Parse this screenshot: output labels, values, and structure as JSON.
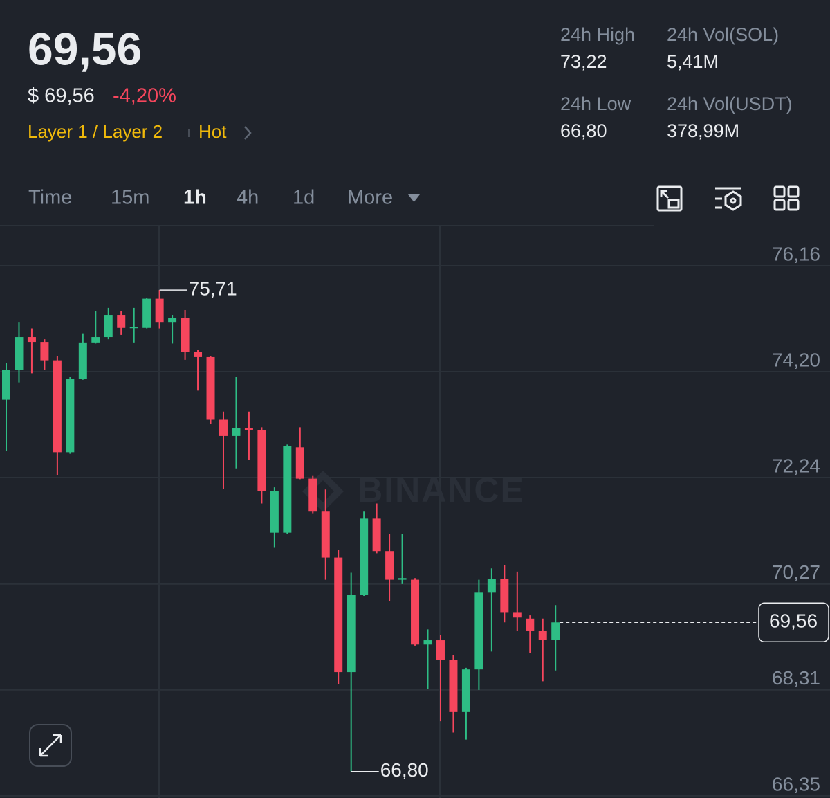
{
  "header": {
    "price": "69,56",
    "usd_price": "$ 69,56",
    "change": "-4,20%",
    "sector": "Layer 1 / Layer 2",
    "tag": "Hot"
  },
  "stats": [
    {
      "label": "24h High",
      "value": "73,22"
    },
    {
      "label": "24h Vol(SOL)",
      "value": "5,41M"
    },
    {
      "label": "24h Low",
      "value": "66,80"
    },
    {
      "label": "24h Vol(USDT)",
      "value": "378,99M"
    }
  ],
  "tabs": {
    "items": [
      "Time",
      "15m",
      "1h",
      "4h",
      "1d",
      "More"
    ],
    "active": "1h"
  },
  "chart_data": {
    "type": "candlestick",
    "watermark": "BINANCE",
    "up_color": "#2ebd85",
    "down_color": "#f6465d",
    "ylim": [
      66.31,
      76.89
    ],
    "yticks": [
      {
        "value": 76.16,
        "label": "76,16"
      },
      {
        "value": 74.2,
        "label": "74,20"
      },
      {
        "value": 72.24,
        "label": "72,24"
      },
      {
        "value": 70.27,
        "label": "70,27"
      },
      {
        "value": 68.31,
        "label": "68,31"
      },
      {
        "value": 66.35,
        "label": "66,35"
      }
    ],
    "grid": true,
    "open": [
      73.68,
      74.23,
      74.84,
      74.75,
      74.41,
      72.71,
      74.06,
      74.74,
      74.84,
      75.25,
      75.01,
      75.01,
      75.55,
      75.12,
      75.19,
      74.57,
      74.47,
      73.31,
      73.01,
      73.16,
      73.12,
      71.22,
      71.22,
      72.8,
      72.22,
      71.61,
      70.76,
      68.64,
      70.07,
      71.48,
      70.88,
      70.35,
      70.35,
      69.15,
      69.23,
      68.86,
      67.9,
      68.69,
      70.11,
      70.37,
      69.75,
      69.63,
      69.41,
      69.24
    ],
    "high": [
      74.36,
      75.12,
      75.0,
      74.8,
      74.49,
      74.1,
      74.91,
      75.32,
      75.38,
      75.32,
      75.38,
      75.57,
      75.71,
      75.25,
      75.34,
      74.61,
      74.49,
      73.46,
      74.1,
      73.46,
      73.17,
      72.06,
      72.85,
      73.17,
      72.27,
      72.02,
      70.9,
      70.48,
      71.61,
      71.76,
      71.19,
      71.19,
      70.38,
      69.43,
      69.33,
      68.95,
      68.72,
      70.35,
      70.56,
      70.62,
      70.5,
      69.69,
      69.63,
      69.88
    ],
    "low": [
      72.73,
      74.0,
      74.17,
      74.23,
      72.29,
      72.68,
      74.05,
      74.72,
      74.8,
      74.88,
      74.74,
      75.0,
      75.0,
      74.72,
      74.42,
      73.85,
      73.24,
      72.03,
      72.41,
      72.57,
      71.76,
      70.94,
      71.19,
      72.21,
      71.58,
      70.35,
      68.41,
      66.8,
      70.05,
      70.84,
      69.95,
      70.27,
      69.13,
      68.33,
      67.73,
      67.52,
      67.39,
      68.31,
      69.02,
      69.56,
      69.41,
      68.99,
      68.47,
      68.67
    ],
    "close": [
      74.23,
      74.84,
      74.75,
      74.41,
      72.71,
      74.06,
      74.74,
      74.84,
      75.25,
      75.01,
      75.03,
      75.55,
      75.12,
      75.19,
      74.57,
      74.47,
      73.31,
      73.01,
      73.16,
      73.12,
      71.99,
      71.99,
      72.82,
      72.22,
      71.61,
      70.76,
      68.64,
      70.07,
      71.48,
      70.88,
      70.35,
      70.38,
      69.15,
      69.23,
      68.86,
      67.9,
      68.69,
      70.11,
      70.37,
      69.75,
      69.65,
      69.41,
      69.24,
      69.56
    ],
    "high_marker": {
      "value": 75.71,
      "label": "75,71"
    },
    "low_marker": {
      "value": 66.8,
      "label": "66,80"
    },
    "last_price": {
      "value": 69.56,
      "label": "69,56"
    }
  }
}
